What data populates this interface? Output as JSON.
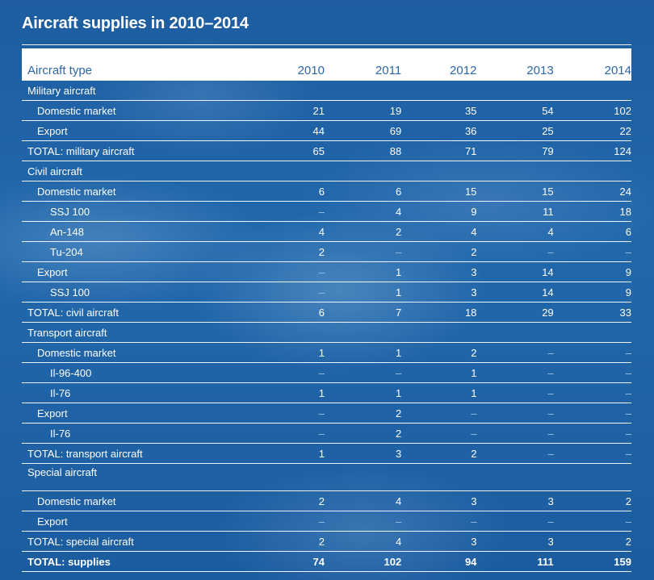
{
  "title": "Aircraft supplies in 2010–2014",
  "table": {
    "columns": [
      "Aircraft type",
      "2010",
      "2011",
      "2012",
      "2013",
      "2014"
    ],
    "rows": [
      {
        "label": "Military aircraft",
        "level": 0,
        "values": [
          "",
          "",
          "",
          "",
          ""
        ]
      },
      {
        "label": "Domestic market",
        "level": 1,
        "values": [
          "21",
          "19",
          "35",
          "54",
          "102"
        ]
      },
      {
        "label": "Export",
        "level": 1,
        "values": [
          "44",
          "69",
          "36",
          "25",
          "22"
        ]
      },
      {
        "label": "TOTAL: military aircraft",
        "level": 0,
        "values": [
          "65",
          "88",
          "71",
          "79",
          "124"
        ]
      },
      {
        "label": "Civil aircraft",
        "level": 0,
        "values": [
          "",
          "",
          "",
          "",
          ""
        ]
      },
      {
        "label": "Domestic market",
        "level": 1,
        "values": [
          "6",
          "6",
          "15",
          "15",
          "24"
        ]
      },
      {
        "label": "SSJ 100",
        "level": 2,
        "values": [
          "–",
          "4",
          "9",
          "11",
          "18"
        ]
      },
      {
        "label": "An-148",
        "level": 2,
        "values": [
          "4",
          "2",
          "4",
          "4",
          "6"
        ]
      },
      {
        "label": "Tu-204",
        "level": 2,
        "values": [
          "2",
          "–",
          "2",
          "–",
          "–"
        ]
      },
      {
        "label": "Export",
        "level": 1,
        "values": [
          "–",
          "1",
          "3",
          "14",
          "9"
        ]
      },
      {
        "label": "SSJ 100",
        "level": 2,
        "values": [
          "–",
          "1",
          "3",
          "14",
          "9"
        ]
      },
      {
        "label": "TOTAL: civil aircraft",
        "level": 0,
        "values": [
          "6",
          "7",
          "18",
          "29",
          "33"
        ]
      },
      {
        "label": "Transport aircraft",
        "level": 0,
        "values": [
          "",
          "",
          "",
          "",
          ""
        ]
      },
      {
        "label": "Domestic market",
        "level": 1,
        "values": [
          "1",
          "1",
          "2",
          "–",
          "–"
        ]
      },
      {
        "label": "Il-96-400",
        "level": 2,
        "values": [
          "–",
          "–",
          "1",
          "–",
          "–"
        ]
      },
      {
        "label": "Il-76",
        "level": 2,
        "values": [
          "1",
          "1",
          "1",
          "–",
          "–"
        ]
      },
      {
        "label": "Export",
        "level": 1,
        "values": [
          "–",
          "2",
          "–",
          "–",
          "–"
        ]
      },
      {
        "label": "Il-76",
        "level": 2,
        "values": [
          "–",
          "2",
          "–",
          "–",
          "–"
        ]
      },
      {
        "label": "TOTAL: transport aircraft",
        "level": 0,
        "values": [
          "1",
          "3",
          "2",
          "–",
          "–"
        ]
      },
      {
        "label": "Special aircraft",
        "level": 0,
        "tall": true,
        "values": [
          "",
          "",
          "",
          "",
          ""
        ]
      },
      {
        "label": "Domestic market",
        "level": 1,
        "values": [
          "2",
          "4",
          "3",
          "3",
          "2"
        ]
      },
      {
        "label": "Export",
        "level": 1,
        "values": [
          "–",
          "–",
          "–",
          "–",
          "–"
        ]
      },
      {
        "label": "TOTAL: special aircraft",
        "level": 0,
        "values": [
          "2",
          "4",
          "3",
          "3",
          "2"
        ]
      },
      {
        "label": "TOTAL: supplies",
        "level": 0,
        "bold": true,
        "values": [
          "74",
          "102",
          "94",
          "111",
          "159"
        ]
      }
    ]
  }
}
